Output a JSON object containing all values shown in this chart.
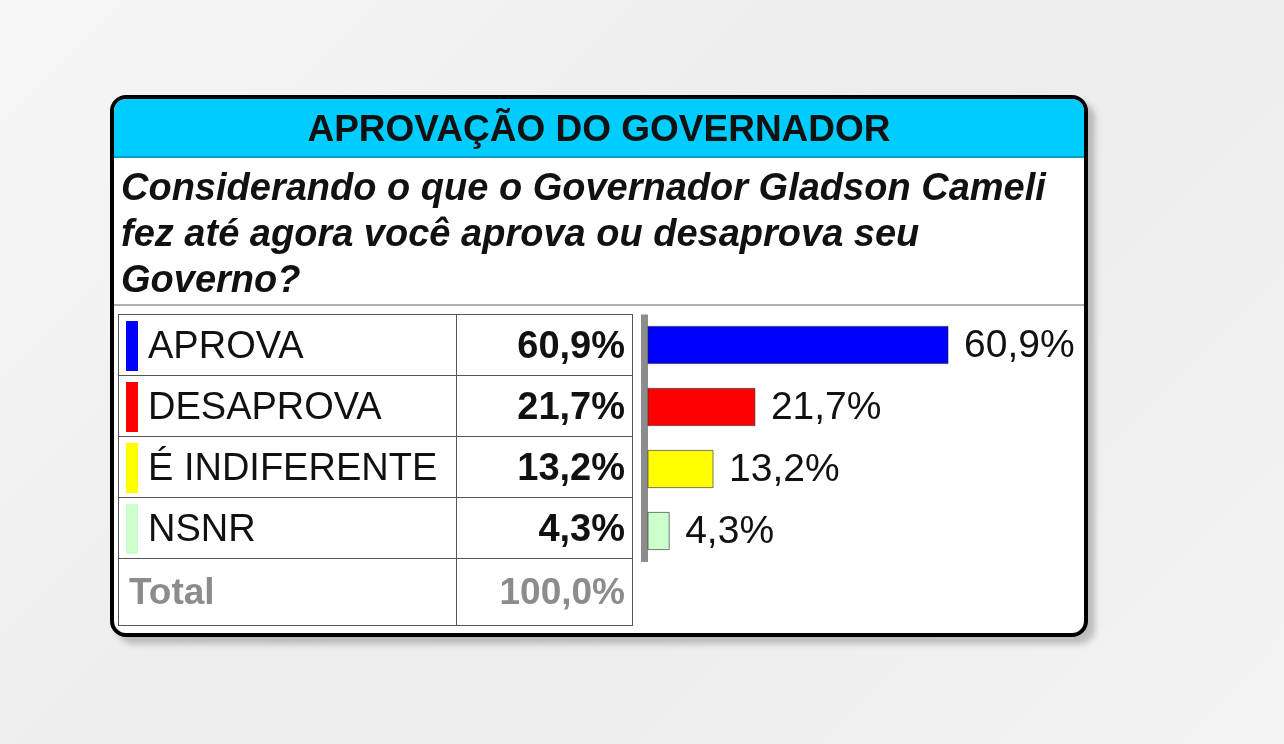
{
  "chart_data": {
    "type": "bar",
    "orientation": "horizontal",
    "title": "APROVAÇÃO DO GOVERNADOR",
    "subtitle": "Considerando o que o Governador Gladson Cameli fez até agora você aprova ou desaprova seu Governo?",
    "categories": [
      "APROVA",
      "DESAPROVA",
      "É INDIFERENTE",
      "NSNR"
    ],
    "values": [
      60.9,
      21.7,
      13.2,
      4.3
    ],
    "colors": [
      "#0000ff",
      "#ff0000",
      "#ffff00",
      "#ccffcc"
    ],
    "value_labels": [
      "60,9%",
      "21,7%",
      "13,2%",
      "4,3%"
    ],
    "annotations": [
      "Total",
      "100,0%"
    ],
    "tick_labels": "y"
  }
}
